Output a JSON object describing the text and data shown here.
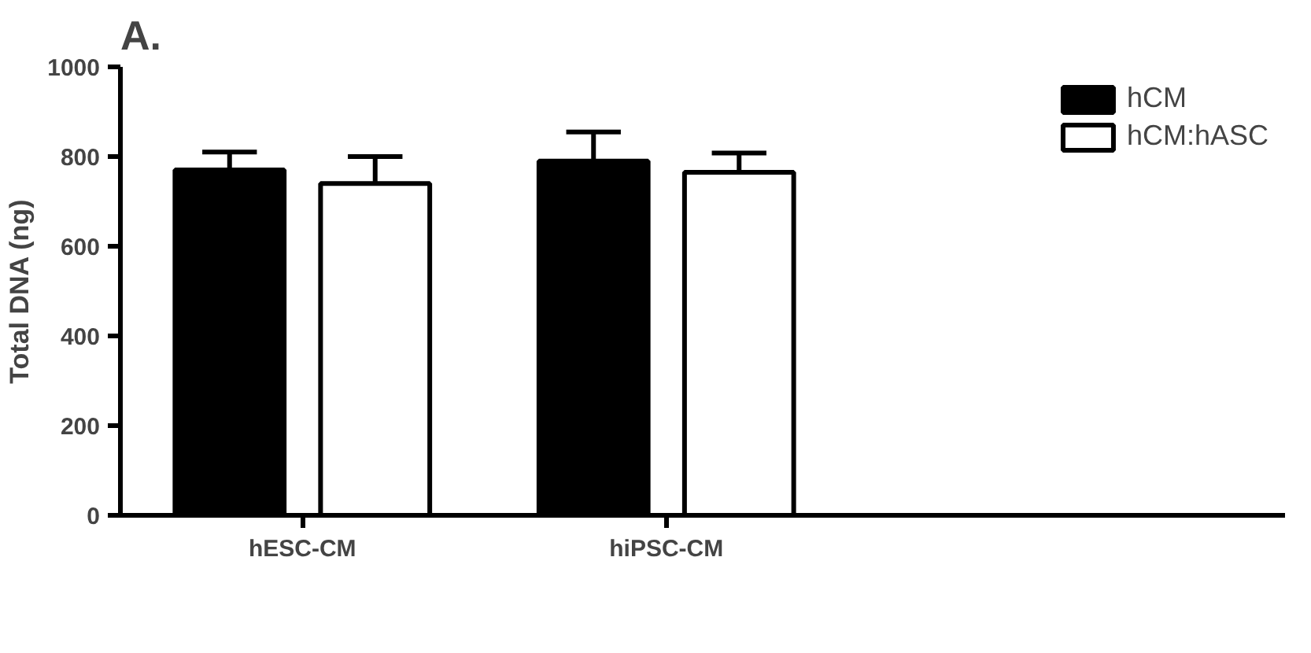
{
  "chart_data": {
    "type": "bar",
    "title": "A.",
    "ylabel": "Total DNA (ng)",
    "categories": [
      "hESC-CM",
      "hiPSC-CM"
    ],
    "series": [
      {
        "name": "hCM",
        "color": "#000000",
        "values": [
          770,
          790
        ],
        "errors": [
          [
            770,
            810
          ],
          [
            790,
            855
          ]
        ]
      },
      {
        "name": "hCM:hASC",
        "color": "#ffffff",
        "values": [
          740,
          765
        ],
        "errors": [
          [
            740,
            800
          ],
          [
            765,
            808
          ]
        ]
      }
    ],
    "ylim": [
      0,
      1000
    ],
    "yticks": [
      0,
      200,
      400,
      600,
      800,
      1000
    ],
    "grid": false,
    "legend": "top right"
  }
}
